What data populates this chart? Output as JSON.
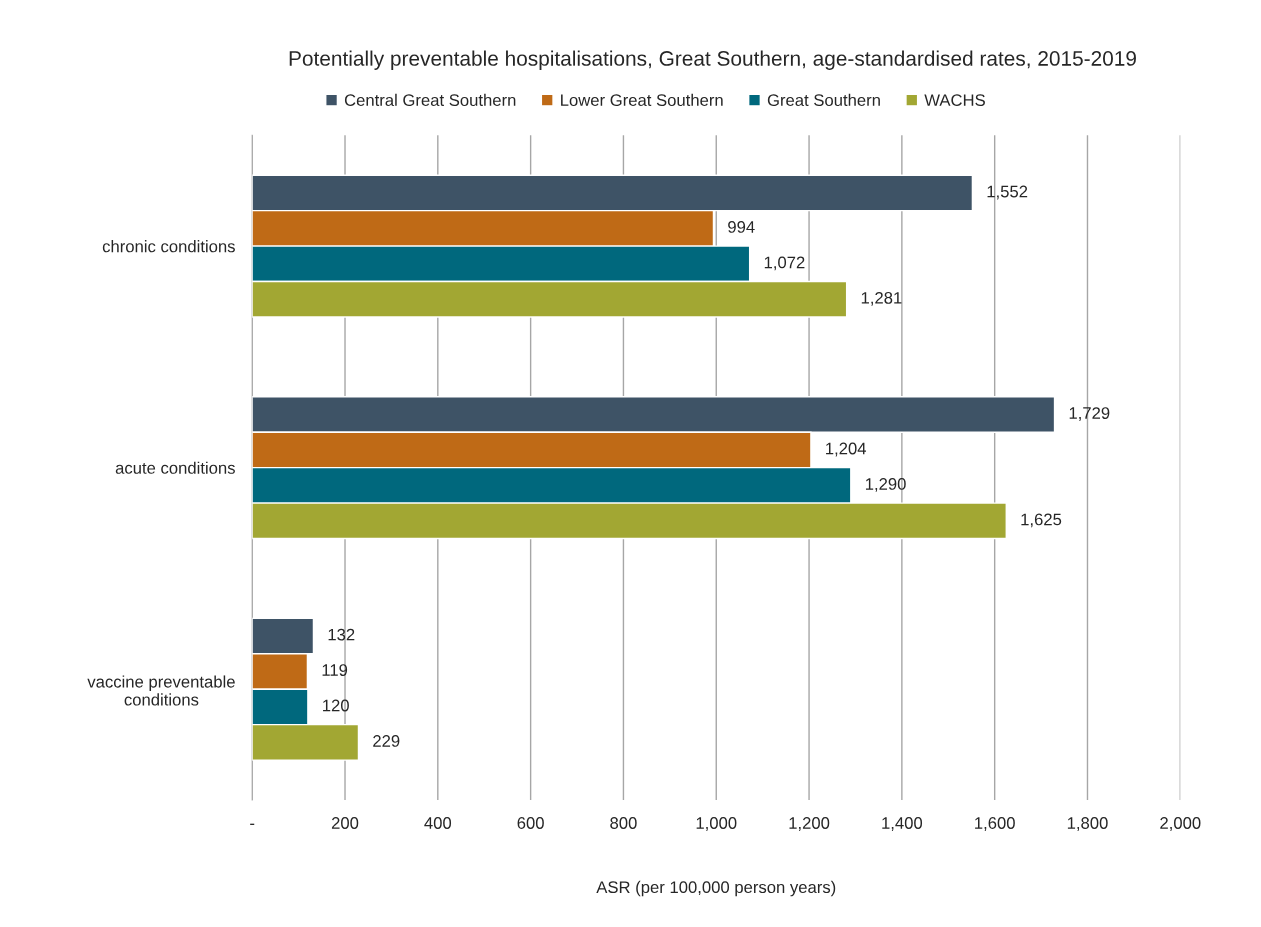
{
  "chart_data": {
    "type": "bar",
    "orientation": "horizontal",
    "title": "Potentially preventable hospitalisations, Great Southern, age-standardised rates, 2015-2019",
    "xlabel": "ASR (per 100,000 person years)",
    "categories": [
      "chronic conditions",
      "acute conditions",
      "vaccine preventable conditions"
    ],
    "series": [
      {
        "name": "Central Great Southern",
        "color": "#3e5366",
        "values": [
          1552,
          1729,
          132
        ],
        "value_labels": [
          "1,552",
          "1,729",
          "132"
        ]
      },
      {
        "name": "Lower Great Southern",
        "color": "#bf6a16",
        "values": [
          994,
          1204,
          119
        ],
        "value_labels": [
          "994",
          "1,204",
          "119"
        ]
      },
      {
        "name": "Great Southern",
        "color": "#00687d",
        "values": [
          1072,
          1290,
          120
        ],
        "value_labels": [
          "1,072",
          "1,290",
          "120"
        ]
      },
      {
        "name": "WACHS",
        "color": "#a2a733",
        "values": [
          1281,
          1625,
          229
        ],
        "value_labels": [
          "1,281",
          "1,625",
          "229"
        ]
      }
    ],
    "xlim": [
      0,
      2000
    ],
    "xticks": [
      {
        "value": 0,
        "label": "-"
      },
      200,
      400,
      600,
      800,
      {
        "value": 1000,
        "label": "1,000"
      },
      {
        "value": 1200,
        "label": "1,200"
      },
      {
        "value": 1400,
        "label": "1,400"
      },
      {
        "value": 1600,
        "label": "1,600"
      },
      {
        "value": 1800,
        "label": "1,800"
      },
      {
        "value": 2000,
        "label": "2,000"
      }
    ],
    "grid": "x",
    "legend": "top"
  }
}
